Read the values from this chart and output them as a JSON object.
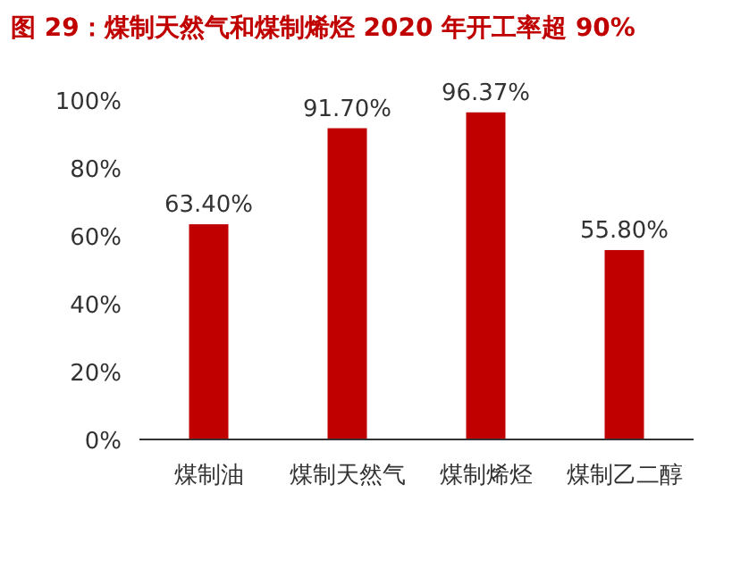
{
  "chart_data": {
    "type": "bar",
    "title": "图 29：煤制天然气和煤制烯烃 2020 年开工率超 90%",
    "categories": [
      "煤制油",
      "煤制天然气",
      "煤制烯烃",
      "煤制乙二醇"
    ],
    "values": [
      63.4,
      91.7,
      96.37,
      55.8
    ],
    "value_labels": [
      "63.40%",
      "91.70%",
      "96.37%",
      "55.80%"
    ],
    "color": "#c00000",
    "ylim": [
      0,
      100
    ],
    "yticks": [
      {
        "value": 0,
        "label": "0%"
      },
      {
        "value": 20,
        "label": "20%"
      },
      {
        "value": 40,
        "label": "40%"
      },
      {
        "value": 60,
        "label": "60%"
      },
      {
        "value": 80,
        "label": "80%"
      },
      {
        "value": 100,
        "label": "100%"
      }
    ],
    "grid": false
  }
}
